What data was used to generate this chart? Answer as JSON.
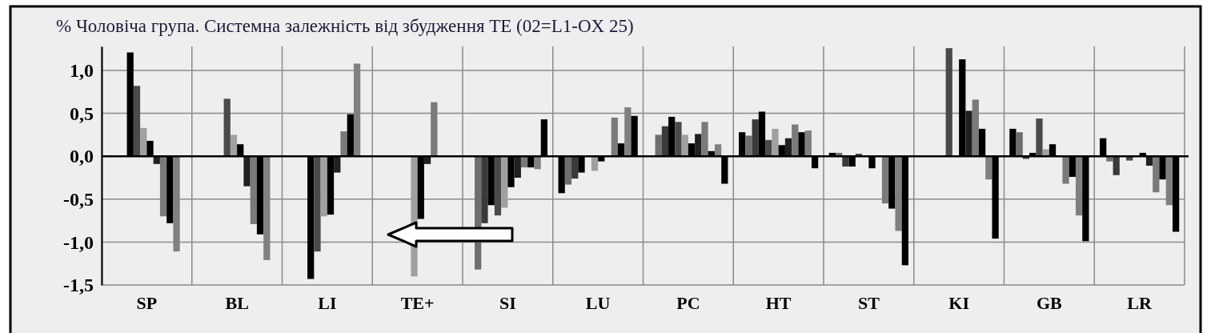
{
  "chart_data": {
    "type": "bar",
    "title": "% Чоловіча група. Системна залежність від збудження  TE (02=L1-OX 25)",
    "categories": [
      "SP",
      "BL",
      "LI",
      "TE+",
      "SI",
      "LU",
      "PC",
      "HT",
      "ST",
      "KI",
      "GB",
      "LR"
    ],
    "ylim": [
      -1.5,
      1.28
    ],
    "yticks": [
      {
        "value": -1.5,
        "label": "-1,5"
      },
      {
        "value": -1,
        "label": "-1,0"
      },
      {
        "value": -0.5,
        "label": "-0,5"
      },
      {
        "value": 0,
        "label": "0,0"
      },
      {
        "value": 0.5,
        "label": "0,5"
      },
      {
        "value": 1,
        "label": "1,0"
      }
    ],
    "grid": true,
    "series": [
      {
        "color": "#000000",
        "values": [
          null,
          null,
          null,
          null,
          null,
          -0.43,
          0.01,
          0.28,
          0.04,
          null,
          0.32,
          0.21
        ]
      },
      {
        "color": "#6e6e6e",
        "values": [
          null,
          null,
          null,
          null,
          -1.32,
          -0.33,
          0.25,
          0.24,
          0.04,
          null,
          0.28,
          -0.06
        ]
      },
      {
        "color": "#3a3a3a",
        "values": [
          null,
          null,
          null,
          null,
          -0.78,
          -0.26,
          0.35,
          0.43,
          -0.12,
          null,
          -0.03,
          -0.22
        ]
      },
      {
        "color": "#000000",
        "values": [
          1.21,
          null,
          -1.43,
          null,
          -0.57,
          -0.19,
          0.46,
          0.52,
          -0.12,
          null,
          0.04,
          0
        ]
      },
      {
        "color": "#4a4a4a",
        "values": [
          0.82,
          0.67,
          -1.11,
          null,
          -0.69,
          0,
          0.4,
          0.19,
          0.03,
          1.26,
          0.44,
          -0.05
        ]
      },
      {
        "color": "#a0a0a0",
        "values": [
          0.33,
          0.25,
          -0.7,
          -1.4,
          -0.6,
          -0.17,
          0.25,
          0.32,
          0,
          null,
          0.08,
          0
        ]
      },
      {
        "color": "#000000",
        "values": [
          0.18,
          0.14,
          -0.68,
          -0.73,
          -0.36,
          -0.06,
          0.15,
          0.13,
          -0.14,
          1.13,
          0.14,
          0.04
        ]
      },
      {
        "color": "#202020",
        "values": [
          -0.09,
          -0.35,
          -0.19,
          -0.09,
          -0.25,
          0,
          0.26,
          0.21,
          0,
          0.53,
          0,
          -0.11
        ]
      },
      {
        "color": "#7a7a7a",
        "values": [
          -0.7,
          -0.79,
          0.29,
          0.63,
          -0.13,
          0.45,
          0.4,
          0.37,
          -0.55,
          0.66,
          -0.32,
          -0.42
        ]
      },
      {
        "color": "#000000",
        "values": [
          -0.78,
          -0.91,
          0.49,
          null,
          -0.13,
          0.15,
          0.06,
          0.28,
          -0.61,
          0.32,
          -0.24,
          -0.27
        ]
      },
      {
        "color": "#808080",
        "values": [
          -1.11,
          -1.21,
          1.08,
          null,
          -0.15,
          0.57,
          0.14,
          0.3,
          -0.87,
          -0.27,
          -0.69,
          -0.57
        ]
      },
      {
        "color": "#000000",
        "values": [
          null,
          null,
          null,
          null,
          0.43,
          0.47,
          -0.32,
          -0.14,
          -1.27,
          -0.96,
          -0.99,
          -0.88
        ]
      }
    ]
  }
}
